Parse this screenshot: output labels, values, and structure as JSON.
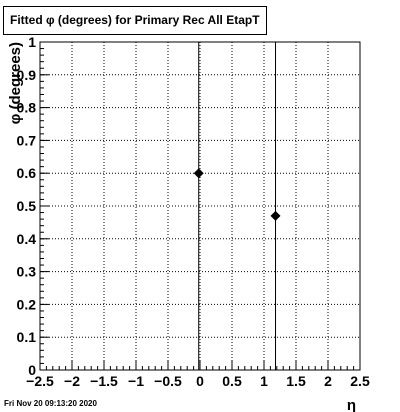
{
  "chart_data": {
    "type": "scatter",
    "title": "Fitted φ (degrees) for Primary Rec All EtapT",
    "xlabel": "η",
    "ylabel": "φ (degrees)",
    "xlim": [
      -2.5,
      2.5
    ],
    "ylim": [
      0,
      1
    ],
    "x_tick_labels": [
      "−2.5",
      "−2",
      "−1.5",
      "−1",
      "−0.5",
      "0",
      "0.5",
      "1",
      "1.5",
      "2",
      "2.5"
    ],
    "y_tick_labels": [
      "0",
      "0.1",
      "0.2",
      "0.3",
      "0.4",
      "0.5",
      "0.6",
      "0.7",
      "0.8",
      "0.9",
      "1"
    ],
    "grid": true,
    "points": [
      {
        "x": -0.02,
        "y": 0.6,
        "y_err_low": 0.6,
        "y_err_high": 0.4
      },
      {
        "x": 1.18,
        "y": 0.47,
        "y_err_low": 0.47,
        "y_err_high": 0.53
      }
    ]
  },
  "footer": {
    "date": "Fri Nov 20 09:13:20 2020"
  }
}
